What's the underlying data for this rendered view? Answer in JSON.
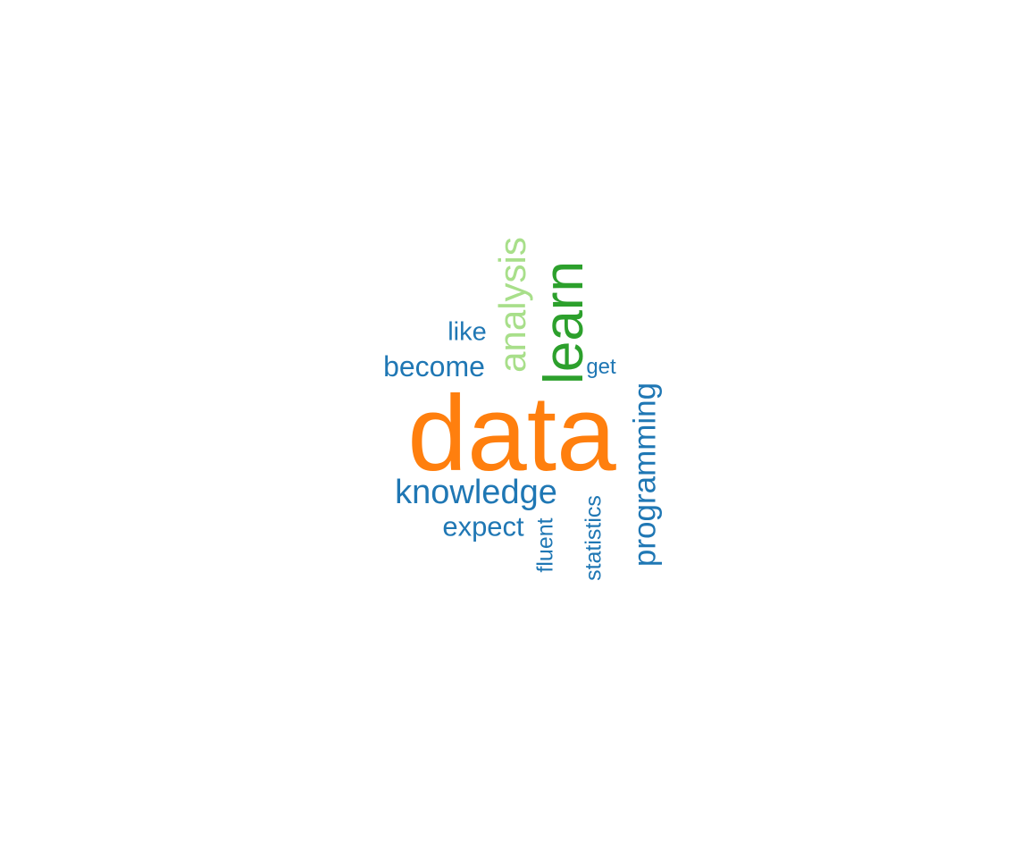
{
  "word_cloud": {
    "colors": {
      "orange": "#ff7f0e",
      "dark_green": "#2ca02c",
      "light_green": "#98df8a",
      "blue": "#1f77b4"
    },
    "words": {
      "data": {
        "text": "data",
        "color": "#ff7f0e"
      },
      "learn": {
        "text": "learn",
        "color": "#2ca02c"
      },
      "analysis": {
        "text": "analysis",
        "color": "#a8df8a"
      },
      "knowledge": {
        "text": "knowledge",
        "color": "#1f77b4"
      },
      "become": {
        "text": "become",
        "color": "#1f77b4"
      },
      "like": {
        "text": "like",
        "color": "#1f77b4"
      },
      "expect": {
        "text": "expect",
        "color": "#1f77b4"
      },
      "programming": {
        "text": "programming",
        "color": "#1f77b4"
      },
      "statistics": {
        "text": "statistics",
        "color": "#1f77b4"
      },
      "fluent": {
        "text": "fluent",
        "color": "#1f77b4"
      },
      "get": {
        "text": "get",
        "color": "#1f77b4"
      }
    }
  }
}
